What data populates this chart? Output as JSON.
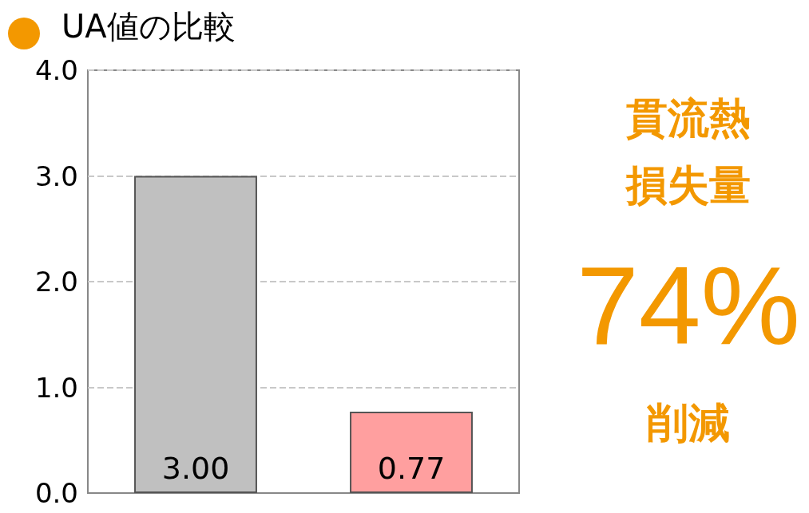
{
  "chart_data": {
    "type": "bar",
    "title": "UA値の比較",
    "categories": [
      null,
      null
    ],
    "values": [
      3.0,
      0.77
    ],
    "colors": [
      "#c0c0c0",
      "#ff9f9f"
    ],
    "value_labels": [
      "3.00",
      "0.77"
    ],
    "ylim": [
      0,
      4
    ],
    "yticks": [
      {
        "value": 0,
        "label": "0.0"
      },
      {
        "value": 1,
        "label": "1.0"
      },
      {
        "value": 2,
        "label": "2.0"
      },
      {
        "value": 3,
        "label": "3.0"
      },
      {
        "value": 4,
        "label": "4.0"
      }
    ],
    "grid": "y",
    "annotations": [
      "貫流熱",
      "損失量",
      "74%",
      "削減"
    ]
  }
}
